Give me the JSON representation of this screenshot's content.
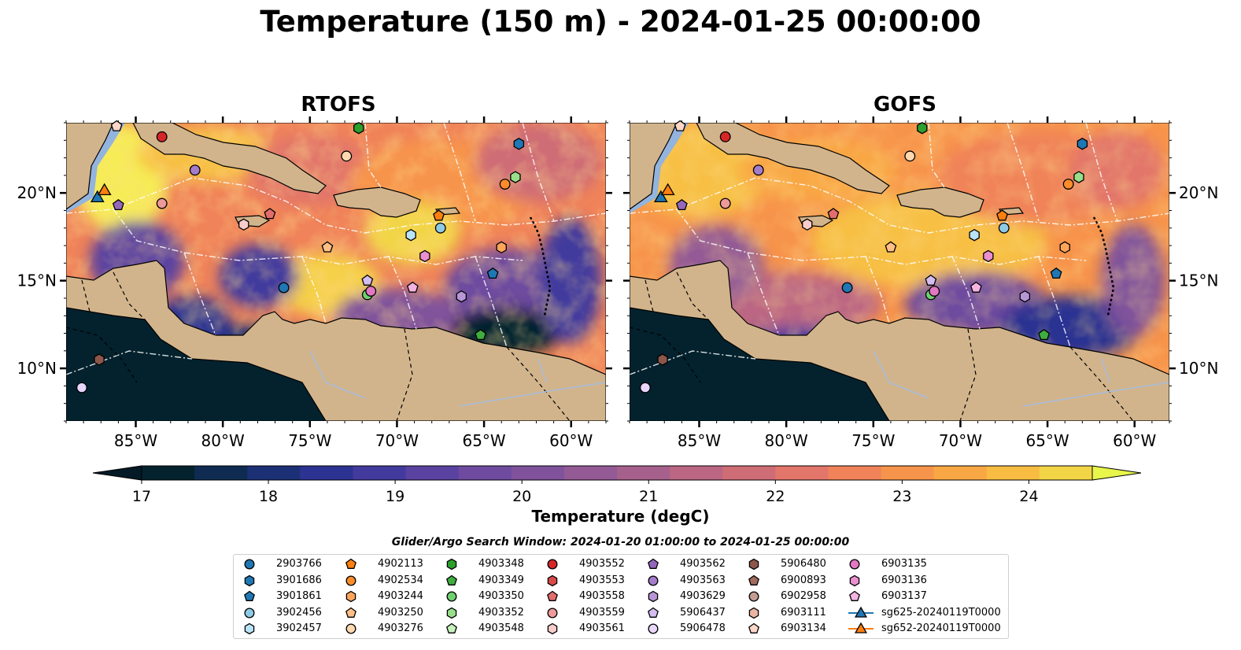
{
  "title": "Temperature (150 m) - 2024-01-25 00:00:00",
  "panels": [
    {
      "title": "RTOFS"
    },
    {
      "title": "GOFS"
    }
  ],
  "map": {
    "lon_range": [
      -89,
      -58
    ],
    "lat_range": [
      7,
      24
    ],
    "lon_ticks": [
      {
        "value": -85,
        "label": "85°W"
      },
      {
        "value": -80,
        "label": "80°W"
      },
      {
        "value": -75,
        "label": "75°W"
      },
      {
        "value": -70,
        "label": "70°W"
      },
      {
        "value": -65,
        "label": "65°W"
      },
      {
        "value": -60,
        "label": "60°W"
      }
    ],
    "lat_ticks": [
      {
        "value": 10,
        "label": "10°N"
      },
      {
        "value": 15,
        "label": "15°N"
      },
      {
        "value": 20,
        "label": "20°N"
      }
    ],
    "land_color": "#d2b48c",
    "shelf_color": "#93b4de"
  },
  "colorbar": {
    "label": "Temperature (degC)",
    "min": 17,
    "max": 24.5,
    "step": 0.5,
    "ticks": [
      "17",
      "18",
      "19",
      "20",
      "21",
      "22",
      "23",
      "24"
    ],
    "colors": [
      "#03222e",
      "#0f2b51",
      "#1b3075",
      "#2c3392",
      "#433a9e",
      "#5a42a1",
      "#6e4b9f",
      "#80529b",
      "#935a95",
      "#a6608c",
      "#bb6683",
      "#cf6d76",
      "#e2766a",
      "#f08359",
      "#f7944b",
      "#f9a744",
      "#f7bc41",
      "#f2d547"
    ],
    "under_color": "#041a26",
    "over_color": "#e8f54a"
  },
  "search_window": "Glider/Argo Search Window: 2024-01-20 01:00:00 to 2024-01-25 00:00:00",
  "legend": [
    {
      "label": "2903766",
      "marker": "circle",
      "color": "#1f77b4"
    },
    {
      "label": "3901686",
      "marker": "hexagon",
      "color": "#1f77b4"
    },
    {
      "label": "3901861",
      "marker": "pentagon",
      "color": "#1f77b4"
    },
    {
      "label": "3902456",
      "marker": "circle",
      "color": "#8ecae6"
    },
    {
      "label": "3902457",
      "marker": "hexagon",
      "color": "#b9e3f7"
    },
    {
      "label": "4902113",
      "marker": "pentagon",
      "color": "#ff7f0e"
    },
    {
      "label": "4902534",
      "marker": "circle",
      "color": "#ff8c2a"
    },
    {
      "label": "4903244",
      "marker": "hexagon",
      "color": "#ffa55a"
    },
    {
      "label": "4903250",
      "marker": "pentagon",
      "color": "#ffbf86"
    },
    {
      "label": "4903276",
      "marker": "circle",
      "color": "#ffd8b0"
    },
    {
      "label": "4903348",
      "marker": "hexagon",
      "color": "#2ca02c"
    },
    {
      "label": "4903349",
      "marker": "pentagon",
      "color": "#3fae3f"
    },
    {
      "label": "4903350",
      "marker": "circle",
      "color": "#6fd06f"
    },
    {
      "label": "4903352",
      "marker": "hexagon",
      "color": "#98df8a"
    },
    {
      "label": "4903548",
      "marker": "pentagon",
      "color": "#c7f2bd"
    },
    {
      "label": "4903552",
      "marker": "circle",
      "color": "#d62728"
    },
    {
      "label": "4903553",
      "marker": "hexagon",
      "color": "#d94a4a"
    },
    {
      "label": "4903558",
      "marker": "pentagon",
      "color": "#e36d6d"
    },
    {
      "label": "4903559",
      "marker": "circle",
      "color": "#ee9a9a"
    },
    {
      "label": "4903561",
      "marker": "hexagon",
      "color": "#f9cccc"
    },
    {
      "label": "4903562",
      "marker": "pentagon",
      "color": "#9467bd"
    },
    {
      "label": "4903563",
      "marker": "circle",
      "color": "#a57cc9"
    },
    {
      "label": "4903629",
      "marker": "hexagon",
      "color": "#b896d6"
    },
    {
      "label": "5906437",
      "marker": "pentagon",
      "color": "#d4bdf0"
    },
    {
      "label": "5906478",
      "marker": "circle",
      "color": "#e9d6fb"
    },
    {
      "label": "5906480",
      "marker": "hexagon",
      "color": "#8c564b"
    },
    {
      "label": "6900893",
      "marker": "pentagon",
      "color": "#a16a5e"
    },
    {
      "label": "6902958",
      "marker": "circle",
      "color": "#c49c94"
    },
    {
      "label": "6903111",
      "marker": "hexagon",
      "color": "#eab5a3"
    },
    {
      "label": "6903134",
      "marker": "pentagon",
      "color": "#fdd7c8"
    },
    {
      "label": "6903135",
      "marker": "circle",
      "color": "#e377c2"
    },
    {
      "label": "6903136",
      "marker": "hexagon",
      "color": "#ea8fd0"
    },
    {
      "label": "6903137",
      "marker": "pentagon",
      "color": "#f4b3e1"
    },
    {
      "label": "sg625-20240119T0000",
      "marker": "triangle-line",
      "color": "#1f77b4"
    },
    {
      "label": "sg652-20240119T0000",
      "marker": "triangle-line",
      "color": "#ff7f0e"
    }
  ],
  "floats": [
    {
      "id": "2903766",
      "lon": -76.5,
      "lat": 14.6
    },
    {
      "id": "3901686",
      "lon": -63.0,
      "lat": 22.8
    },
    {
      "id": "3901861",
      "lon": -64.5,
      "lat": 15.4
    },
    {
      "id": "3902456",
      "lon": -67.5,
      "lat": 18.0
    },
    {
      "id": "3902457",
      "lon": -69.2,
      "lat": 17.6
    },
    {
      "id": "4902113",
      "lon": -67.6,
      "lat": 18.7
    },
    {
      "id": "4902534",
      "lon": -63.8,
      "lat": 20.5
    },
    {
      "id": "4903244",
      "lon": -64.0,
      "lat": 16.9
    },
    {
      "id": "4903250",
      "lon": -74.0,
      "lat": 16.9
    },
    {
      "id": "4903276",
      "lon": -72.9,
      "lat": 22.1
    },
    {
      "id": "4903348",
      "lon": -72.2,
      "lat": 23.7
    },
    {
      "id": "4903349",
      "lon": -65.2,
      "lat": 11.9
    },
    {
      "id": "4903350",
      "lon": -71.7,
      "lat": 14.2
    },
    {
      "id": "4903352",
      "lon": -63.2,
      "lat": 20.9
    },
    {
      "id": "4903552",
      "lon": -83.5,
      "lat": 23.2
    },
    {
      "id": "4903558",
      "lon": -77.3,
      "lat": 18.8
    },
    {
      "id": "4903559",
      "lon": -83.5,
      "lat": 19.4
    },
    {
      "id": "4903561",
      "lon": -78.8,
      "lat": 18.2
    },
    {
      "id": "4903562",
      "lon": -86.0,
      "lat": 19.3
    },
    {
      "id": "4903563",
      "lon": -81.6,
      "lat": 21.3
    },
    {
      "id": "4903629",
      "lon": -66.3,
      "lat": 14.1
    },
    {
      "id": "5906437",
      "lon": -71.7,
      "lat": 15.0
    },
    {
      "id": "5906478",
      "lon": -88.1,
      "lat": 8.9
    },
    {
      "id": "5906480",
      "lon": -87.1,
      "lat": 10.5
    },
    {
      "id": "6903134",
      "lon": -86.1,
      "lat": 23.8
    },
    {
      "id": "6903135",
      "lon": -71.5,
      "lat": 14.4
    },
    {
      "id": "6903136",
      "lon": -68.4,
      "lat": 16.4
    },
    {
      "id": "6903137",
      "lon": -69.1,
      "lat": 14.6
    }
  ],
  "gliders": [
    {
      "id": "sg625-20240119T0000",
      "lon": -87.2,
      "lat": 19.7
    },
    {
      "id": "sg652-20240119T0000",
      "lon": -86.8,
      "lat": 20.1
    }
  ]
}
